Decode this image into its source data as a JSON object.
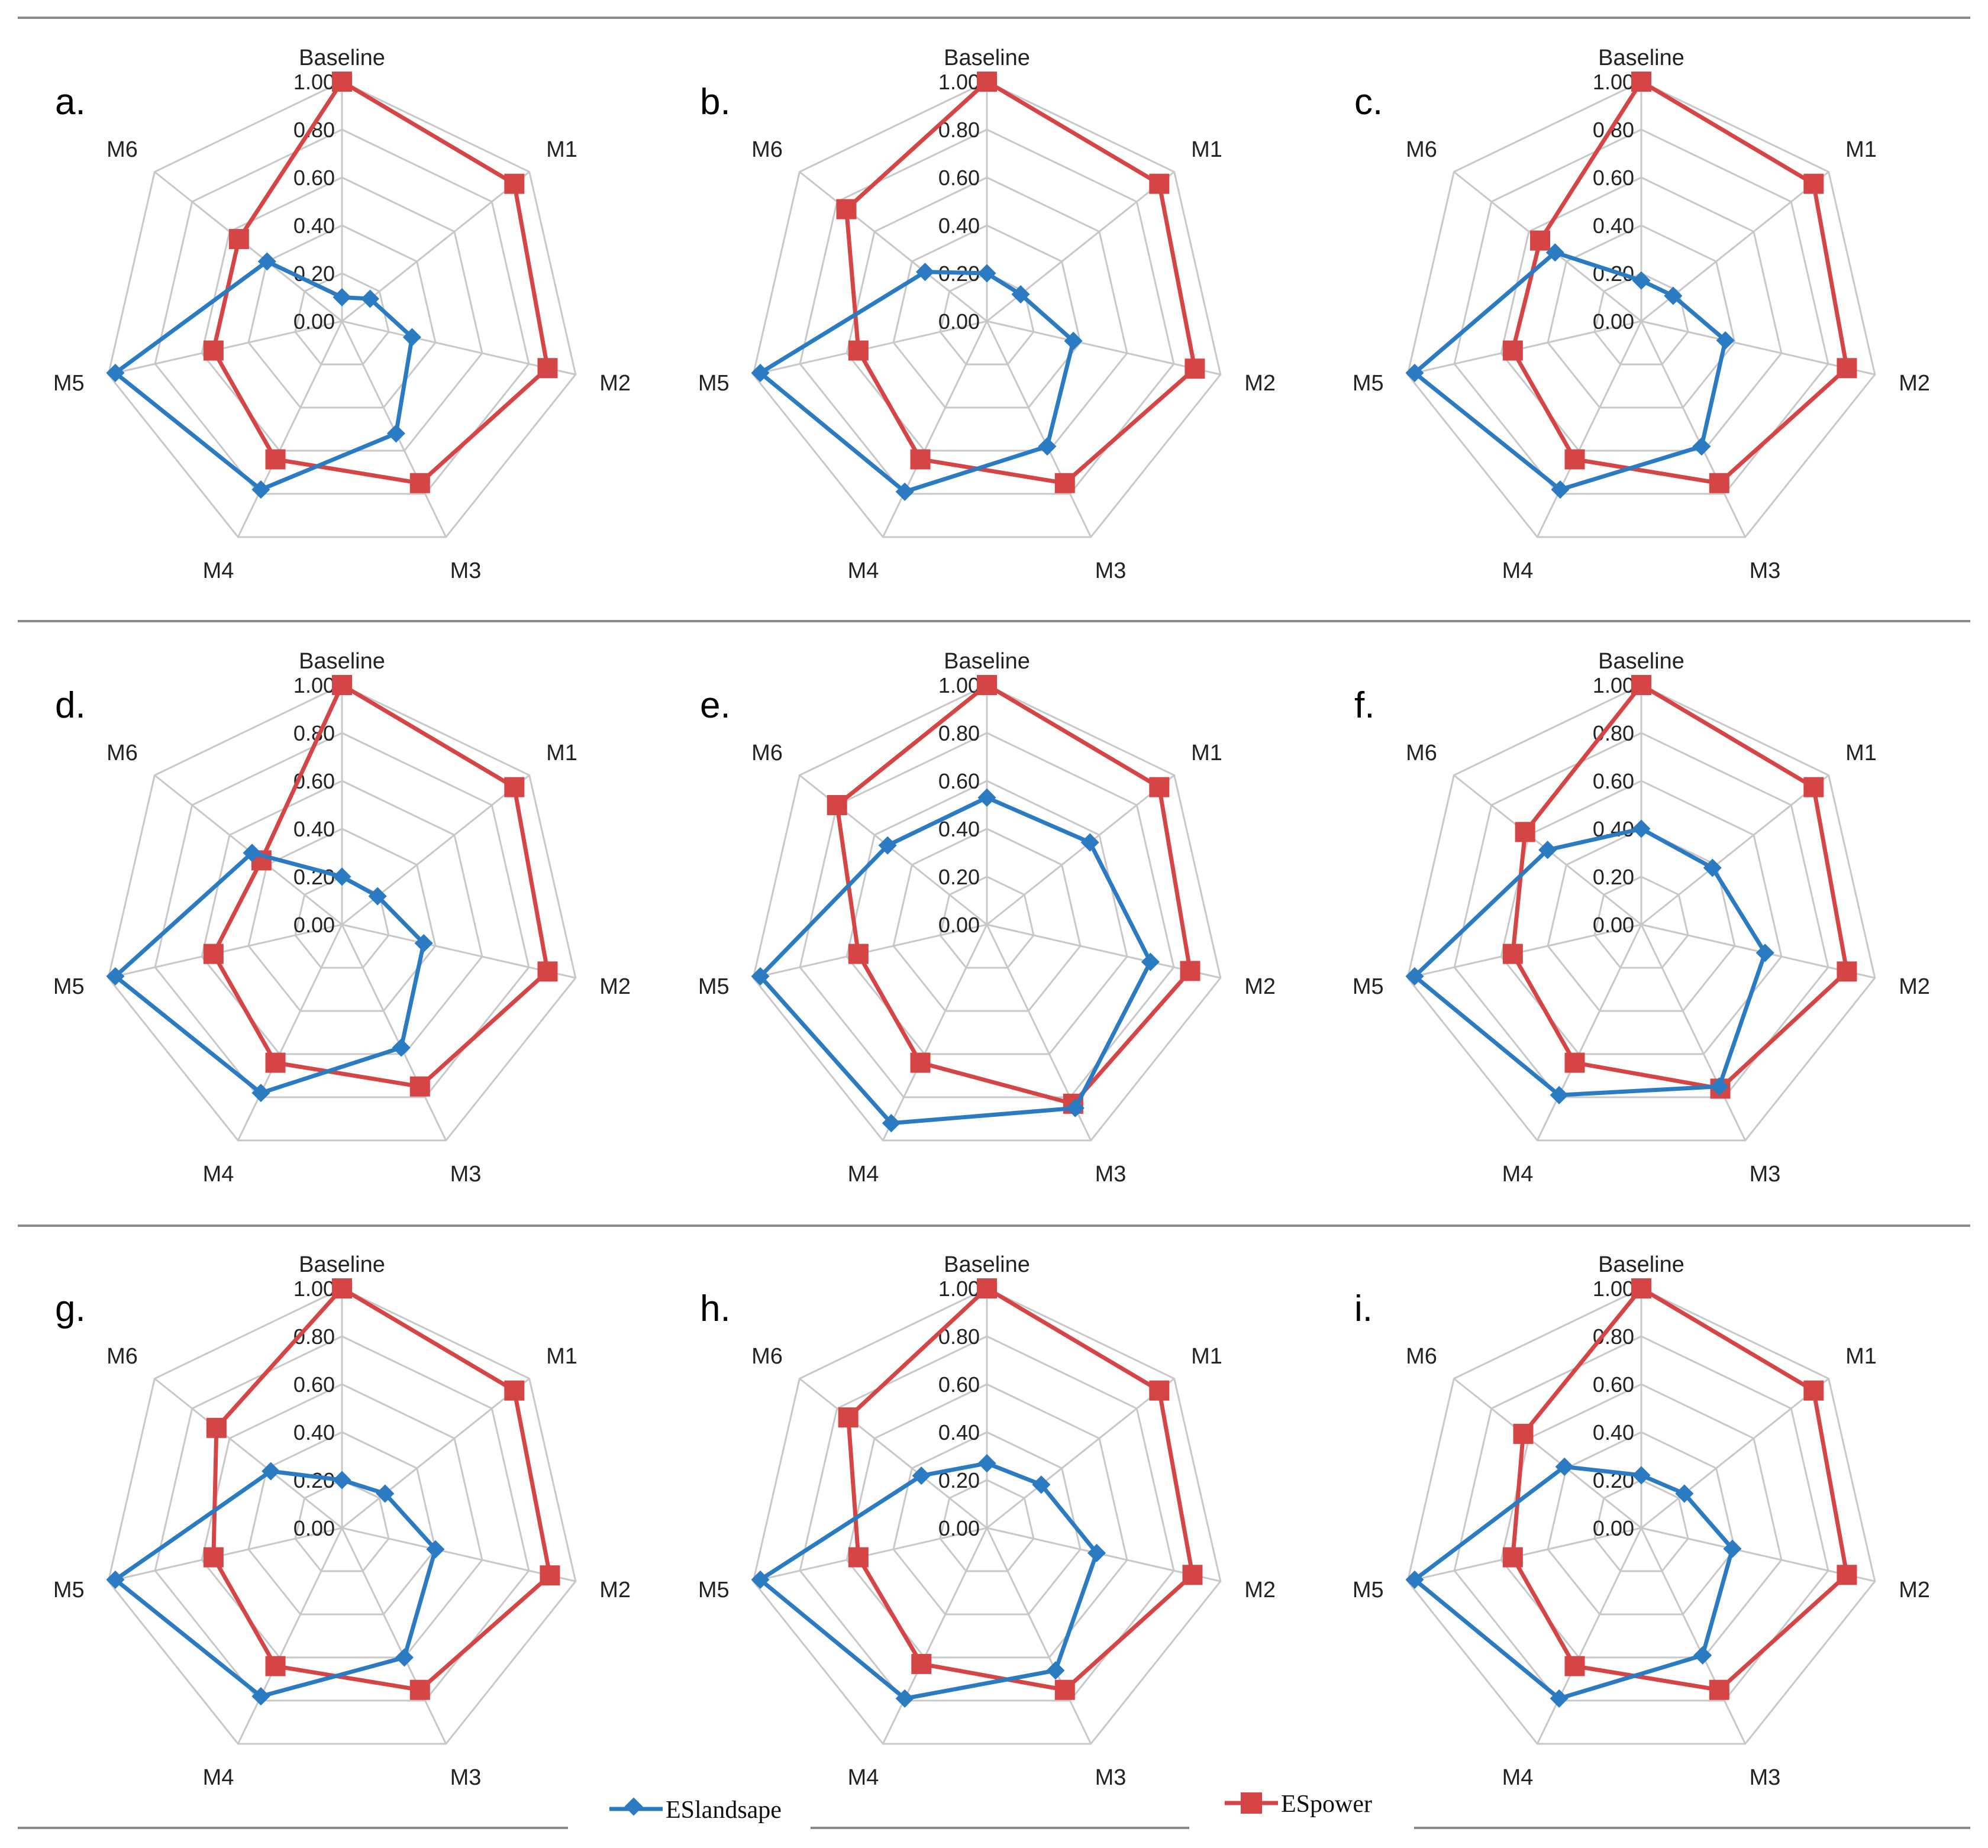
{
  "chart_data": {
    "type": "radar",
    "axes": [
      "Baseline",
      "M1",
      "M2",
      "M3",
      "M4",
      "M5",
      "M6"
    ],
    "ticks": [
      "0.00",
      "0.20",
      "0.40",
      "0.60",
      "0.80",
      "1.00"
    ],
    "rlim": [
      0,
      1
    ],
    "legend": {
      "placement": "bottom",
      "items": [
        {
          "name": "ESlandsape",
          "color": "#2b7bc3",
          "marker": "diamond"
        },
        {
          "name": "ESpower",
          "color": "#d64545",
          "marker": "square"
        }
      ]
    },
    "panels": [
      {
        "label": "a.",
        "series": [
          {
            "name": "ESlandsape",
            "values": [
              0.1,
              0.15,
              0.3,
              0.52,
              0.78,
              0.97,
              0.4
            ]
          },
          {
            "name": "ESpower",
            "values": [
              1.0,
              0.92,
              0.88,
              0.75,
              0.64,
              0.55,
              0.55
            ]
          }
        ]
      },
      {
        "label": "b.",
        "series": [
          {
            "name": "ESlandsape",
            "values": [
              0.2,
              0.18,
              0.37,
              0.58,
              0.79,
              0.97,
              0.33
            ]
          },
          {
            "name": "ESpower",
            "values": [
              1.0,
              0.92,
              0.89,
              0.75,
              0.64,
              0.55,
              0.75
            ]
          }
        ]
      },
      {
        "label": "c.",
        "series": [
          {
            "name": "ESlandsape",
            "values": [
              0.17,
              0.17,
              0.36,
              0.58,
              0.78,
              0.97,
              0.46
            ]
          },
          {
            "name": "ESpower",
            "values": [
              1.0,
              0.92,
              0.88,
              0.75,
              0.64,
              0.55,
              0.54
            ]
          }
        ]
      },
      {
        "label": "d.",
        "series": [
          {
            "name": "ESlandsape",
            "values": [
              0.2,
              0.19,
              0.35,
              0.57,
              0.78,
              0.97,
              0.48
            ]
          },
          {
            "name": "ESpower",
            "values": [
              1.0,
              0.92,
              0.88,
              0.75,
              0.64,
              0.55,
              0.43
            ]
          }
        ]
      },
      {
        "label": "e.",
        "series": [
          {
            "name": "ESlandsape",
            "values": [
              0.53,
              0.55,
              0.7,
              0.85,
              0.92,
              0.97,
              0.53
            ]
          },
          {
            "name": "ESpower",
            "values": [
              1.0,
              0.92,
              0.87,
              0.83,
              0.64,
              0.55,
              0.8
            ]
          }
        ]
      },
      {
        "label": "f.",
        "series": [
          {
            "name": "ESlandsape",
            "values": [
              0.4,
              0.38,
              0.53,
              0.75,
              0.79,
              0.97,
              0.5
            ]
          },
          {
            "name": "ESpower",
            "values": [
              1.0,
              0.92,
              0.88,
              0.76,
              0.64,
              0.55,
              0.62
            ]
          }
        ]
      },
      {
        "label": "g.",
        "series": [
          {
            "name": "ESlandsape",
            "values": [
              0.2,
              0.23,
              0.4,
              0.6,
              0.78,
              0.97,
              0.38
            ]
          },
          {
            "name": "ESpower",
            "values": [
              1.0,
              0.92,
              0.89,
              0.75,
              0.64,
              0.55,
              0.67
            ]
          }
        ]
      },
      {
        "label": "h.",
        "series": [
          {
            "name": "ESlandsape",
            "values": [
              0.27,
              0.29,
              0.47,
              0.66,
              0.79,
              0.97,
              0.35
            ]
          },
          {
            "name": "ESpower",
            "values": [
              1.0,
              0.92,
              0.88,
              0.75,
              0.63,
              0.55,
              0.74
            ]
          }
        ]
      },
      {
        "label": "i.",
        "series": [
          {
            "name": "ESlandsape",
            "values": [
              0.22,
              0.23,
              0.39,
              0.59,
              0.79,
              0.97,
              0.41
            ]
          },
          {
            "name": "ESpower",
            "values": [
              1.0,
              0.92,
              0.88,
              0.75,
              0.64,
              0.55,
              0.63
            ]
          }
        ]
      }
    ]
  }
}
